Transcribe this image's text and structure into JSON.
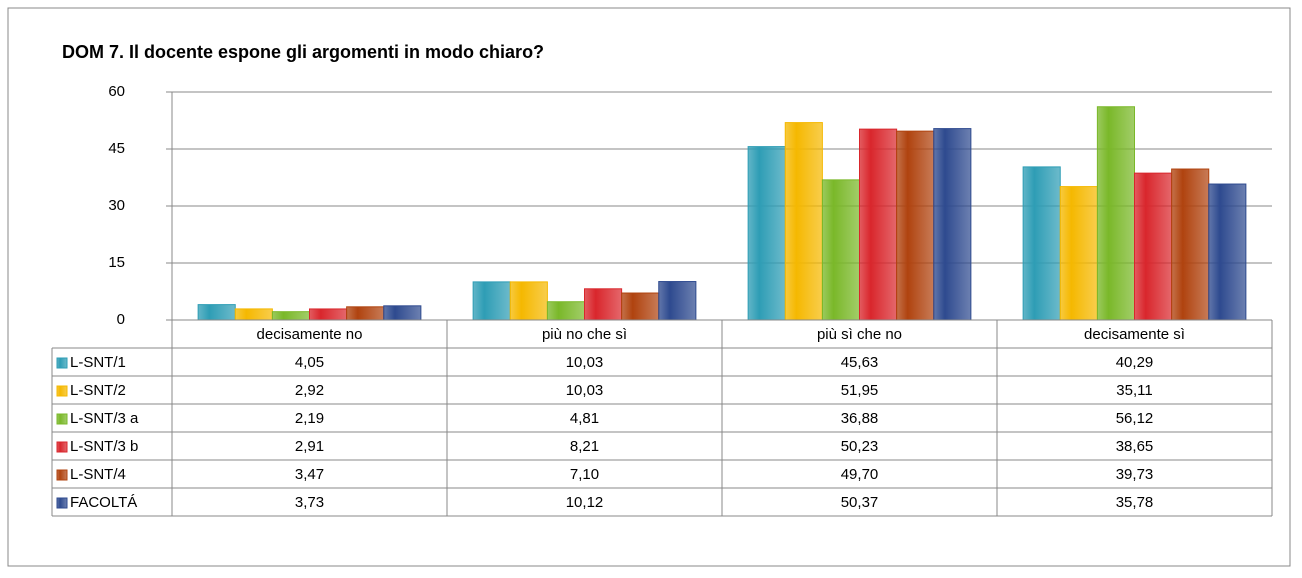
{
  "chart_data": {
    "type": "bar",
    "title": "DOM 7. Il docente espone gli argomenti in modo chiaro?",
    "categories": [
      "decisamente no",
      "più no che sì",
      "più sì che no",
      "decisamente sì"
    ],
    "ylim": [
      0,
      60
    ],
    "yticks": [
      0,
      15,
      30,
      45,
      60
    ],
    "grid": true,
    "series": [
      {
        "name": "L-SNT/1",
        "color": "#2e9db5",
        "values": [
          4.05,
          10.03,
          45.63,
          40.29
        ],
        "value_labels": [
          "4,05",
          "10,03",
          "45,63",
          "40,29"
        ]
      },
      {
        "name": "L-SNT/2",
        "color": "#f5b800",
        "values": [
          2.92,
          10.03,
          51.95,
          35.11
        ],
        "value_labels": [
          "2,92",
          "10,03",
          "51,95",
          "35,11"
        ]
      },
      {
        "name": "L-SNT/3 a",
        "color": "#7ab829",
        "values": [
          2.19,
          4.81,
          36.88,
          56.12
        ],
        "value_labels": [
          "2,19",
          "4,81",
          "36,88",
          "56,12"
        ]
      },
      {
        "name": "L-SNT/3 b",
        "color": "#d9262c",
        "values": [
          2.91,
          8.21,
          50.23,
          38.65
        ],
        "value_labels": [
          "2,91",
          "8,21",
          "50,23",
          "38,65"
        ]
      },
      {
        "name": "L-SNT/4",
        "color": "#b0430f",
        "values": [
          3.47,
          7.1,
          49.7,
          39.73
        ],
        "value_labels": [
          "3,47",
          "7,10",
          "49,70",
          "39,73"
        ]
      },
      {
        "name": "FACOLTÁ",
        "color": "#2e4a8f",
        "values": [
          3.73,
          10.12,
          50.37,
          35.78
        ],
        "value_labels": [
          "3,73",
          "10,12",
          "50,37",
          "35,78"
        ]
      }
    ]
  }
}
